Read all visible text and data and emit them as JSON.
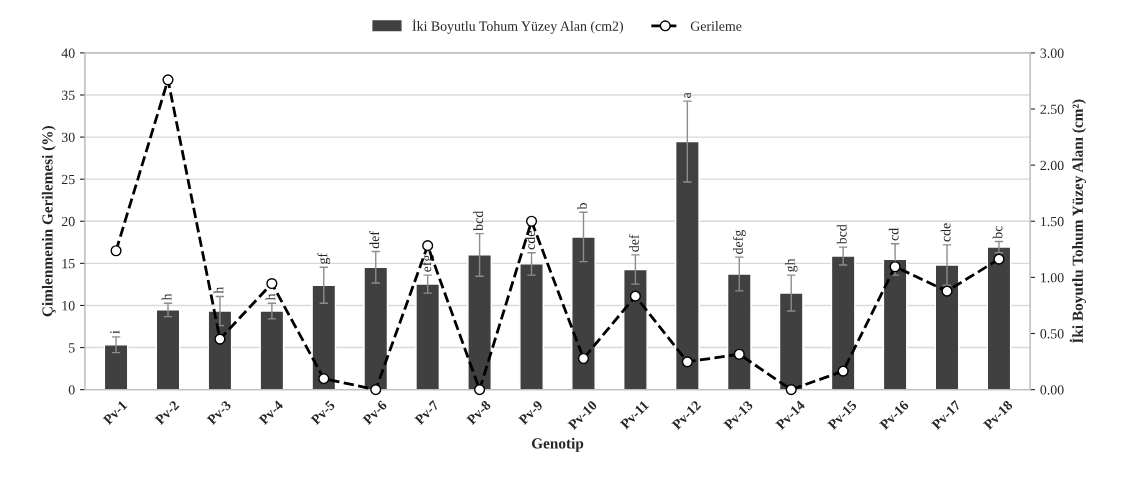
{
  "chart_data": {
    "type": "bar",
    "categories": [
      "Pv-1",
      "Pv-2",
      "Pv-3",
      "Pv-4",
      "Pv-5",
      "Pv-6",
      "Pv-7",
      "Pv-8",
      "Pv-9",
      "Pv-10",
      "Pv-11",
      "Pv-12",
      "Pv-13",
      "Pv-14",
      "Pv-15",
      "Pv-16",
      "Pv-17",
      "Pv-18"
    ],
    "xlabel": "Genotip",
    "ylabel": "Çimlenmenin Gerilemesi (%)",
    "y2label": "İki Boyutlu Tohum Yüzey Alanı (cm²)",
    "series": [
      {
        "name": "İki Boyutlu Tohum Yüzey Alan (cm2)",
        "axis": "y2",
        "color": "#404040",
        "values": [
          0.4,
          0.71,
          0.7,
          0.7,
          0.93,
          1.09,
          0.94,
          1.2,
          1.12,
          1.36,
          1.07,
          2.21,
          1.03,
          0.86,
          1.19,
          1.16,
          1.11,
          1.27
        ],
        "errors": [
          0.07,
          0.06,
          0.13,
          0.07,
          0.16,
          0.14,
          0.08,
          0.19,
          0.1,
          0.22,
          0.13,
          0.36,
          0.15,
          0.16,
          0.08,
          0.14,
          0.18,
          0.05
        ],
        "value_labels": [
          "i",
          "h",
          "h",
          "h",
          "gf",
          "def",
          "efg",
          "bcd",
          "cde",
          "b",
          "def",
          "a",
          "defg",
          "gh",
          "bcd",
          "cd",
          "cde",
          "bc"
        ]
      },
      {
        "name": "Gerileme",
        "type": "line",
        "color": "#000000",
        "marker": "circle",
        "line_style": "dashed",
        "values": [
          16.5,
          36.8,
          6.0,
          12.6,
          1.3,
          0,
          17.1,
          0,
          20.0,
          3.7,
          11.1,
          3.3,
          4.2,
          0,
          2.2,
          14.6,
          11.7,
          15.5
        ]
      }
    ],
    "ylim": [
      0,
      40
    ],
    "yticks": [
      0,
      5,
      10,
      15,
      20,
      25,
      30,
      35,
      40
    ],
    "y2lim": [
      0,
      3
    ],
    "y2ticks": [
      {
        "value": 0,
        "label": "0.00"
      },
      {
        "value": 0.5,
        "label": "0.50"
      },
      {
        "value": 1,
        "label": "1.00"
      },
      {
        "value": 1.5,
        "label": "1.50"
      },
      {
        "value": 2,
        "label": "2.00"
      },
      {
        "value": 2.5,
        "label": "2.50"
      },
      {
        "value": 3,
        "label": "3.00"
      }
    ],
    "grid": "y",
    "legend": "top"
  }
}
